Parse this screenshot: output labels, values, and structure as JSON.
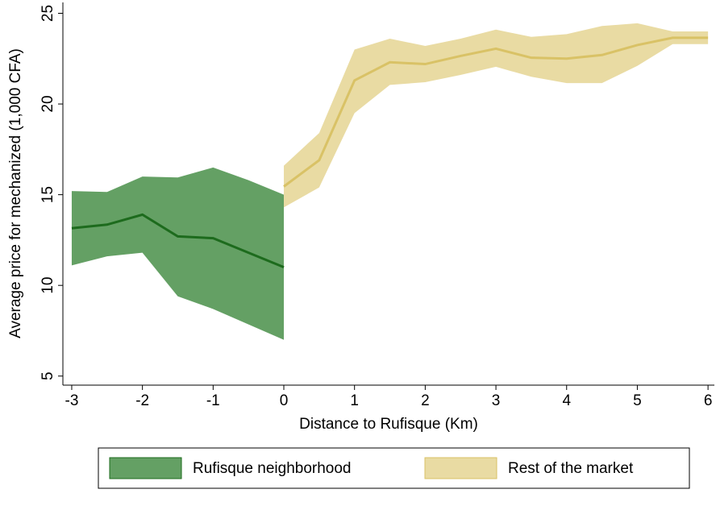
{
  "chart_data": {
    "type": "line-band",
    "x_label": "Distance to Rufisque (Km)",
    "y_label": "Average price for mechanized (1,000 CFA)",
    "xlim": [
      -3.125,
      6.09
    ],
    "ylim": [
      4.5,
      25.6
    ],
    "xticks": [
      -3,
      -2,
      -1,
      0,
      1,
      2,
      3,
      4,
      5,
      6
    ],
    "yticks": [
      5,
      10,
      15,
      20,
      25
    ],
    "series": [
      {
        "name": "Rufisque neighborhood",
        "color": "#1d6b1d",
        "band_color": "#64a064",
        "x": [
          -3,
          -2.5,
          -2,
          -1.5,
          -1,
          -0.5,
          0
        ],
        "values": [
          13.15,
          13.35,
          13.9,
          12.7,
          12.6,
          11.8,
          11.0
        ],
        "lower": [
          11.1,
          11.6,
          11.8,
          9.4,
          8.7,
          7.85,
          7.0
        ],
        "upper": [
          15.2,
          15.15,
          16.0,
          15.95,
          16.5,
          15.8,
          15.0
        ]
      },
      {
        "name": "Rest of the market",
        "color": "#d9c266",
        "band_color": "#e9dba3",
        "x": [
          0,
          0.5,
          1,
          1.5,
          2,
          2.5,
          3,
          3.5,
          4,
          4.5,
          5,
          5.5,
          6
        ],
        "values": [
          15.45,
          16.9,
          21.3,
          22.3,
          22.2,
          22.65,
          23.05,
          22.55,
          22.5,
          22.7,
          23.25,
          23.65,
          23.65
        ],
        "lower": [
          14.3,
          15.4,
          19.5,
          21.05,
          21.2,
          21.6,
          22.05,
          21.5,
          21.15,
          21.15,
          22.1,
          23.3,
          23.3
        ],
        "upper": [
          16.6,
          18.4,
          23.0,
          23.6,
          23.2,
          23.6,
          24.1,
          23.7,
          23.85,
          24.3,
          24.45,
          24.0,
          24.0
        ]
      }
    ]
  }
}
